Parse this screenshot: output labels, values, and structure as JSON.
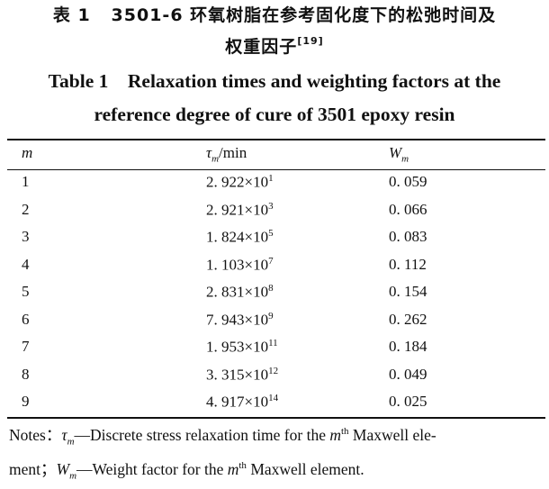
{
  "title": {
    "cn_prefix": "表 1",
    "cn_line1": "3501-6 环氧树脂在参考固化度下的松弛时间及",
    "cn_line2": "权重因子",
    "cn_ref": "[19]",
    "en_line1": "Table 1    Relaxation times and weighting factors at the",
    "en_line2": "reference degree of cure of 3501 epoxy resin"
  },
  "table": {
    "headers": {
      "col1": "m",
      "col2_sym": "τ",
      "col2_sub": "m",
      "col2_unit": "/min",
      "col3_sym": "W",
      "col3_sub": "m"
    },
    "rows": [
      {
        "m": "1",
        "tau_mantissa": "2. 922",
        "tau_exp": "1",
        "w": "0. 059"
      },
      {
        "m": "2",
        "tau_mantissa": "2. 921",
        "tau_exp": "3",
        "w": "0. 066"
      },
      {
        "m": "3",
        "tau_mantissa": "1. 824",
        "tau_exp": "5",
        "w": "0. 083"
      },
      {
        "m": "4",
        "tau_mantissa": "1. 103",
        "tau_exp": "7",
        "w": "0. 112"
      },
      {
        "m": "5",
        "tau_mantissa": "2. 831",
        "tau_exp": "8",
        "w": "0. 154"
      },
      {
        "m": "6",
        "tau_mantissa": "7. 943",
        "tau_exp": "9",
        "w": "0. 262"
      },
      {
        "m": "7",
        "tau_mantissa": "1. 953",
        "tau_exp": "11",
        "w": "0. 184"
      },
      {
        "m": "8",
        "tau_mantissa": "3. 315",
        "tau_exp": "12",
        "w": "0. 049"
      },
      {
        "m": "9",
        "tau_mantissa": "4. 917",
        "tau_exp": "14",
        "w": "0. 025"
      }
    ],
    "times_ten": "×10"
  },
  "notes": {
    "label": "Notes：",
    "tau_sym": "τ",
    "tau_sub": "m",
    "tau_desc_a": "—Discrete stress relaxation time for the ",
    "m_sym": "m",
    "th": "th",
    "tau_desc_b": " Maxwell ele-",
    "line2_a": "ment；",
    "w_sym": "W",
    "w_sub": "m",
    "w_desc_a": "—Weight factor for the ",
    "w_desc_b": " Maxwell element."
  }
}
